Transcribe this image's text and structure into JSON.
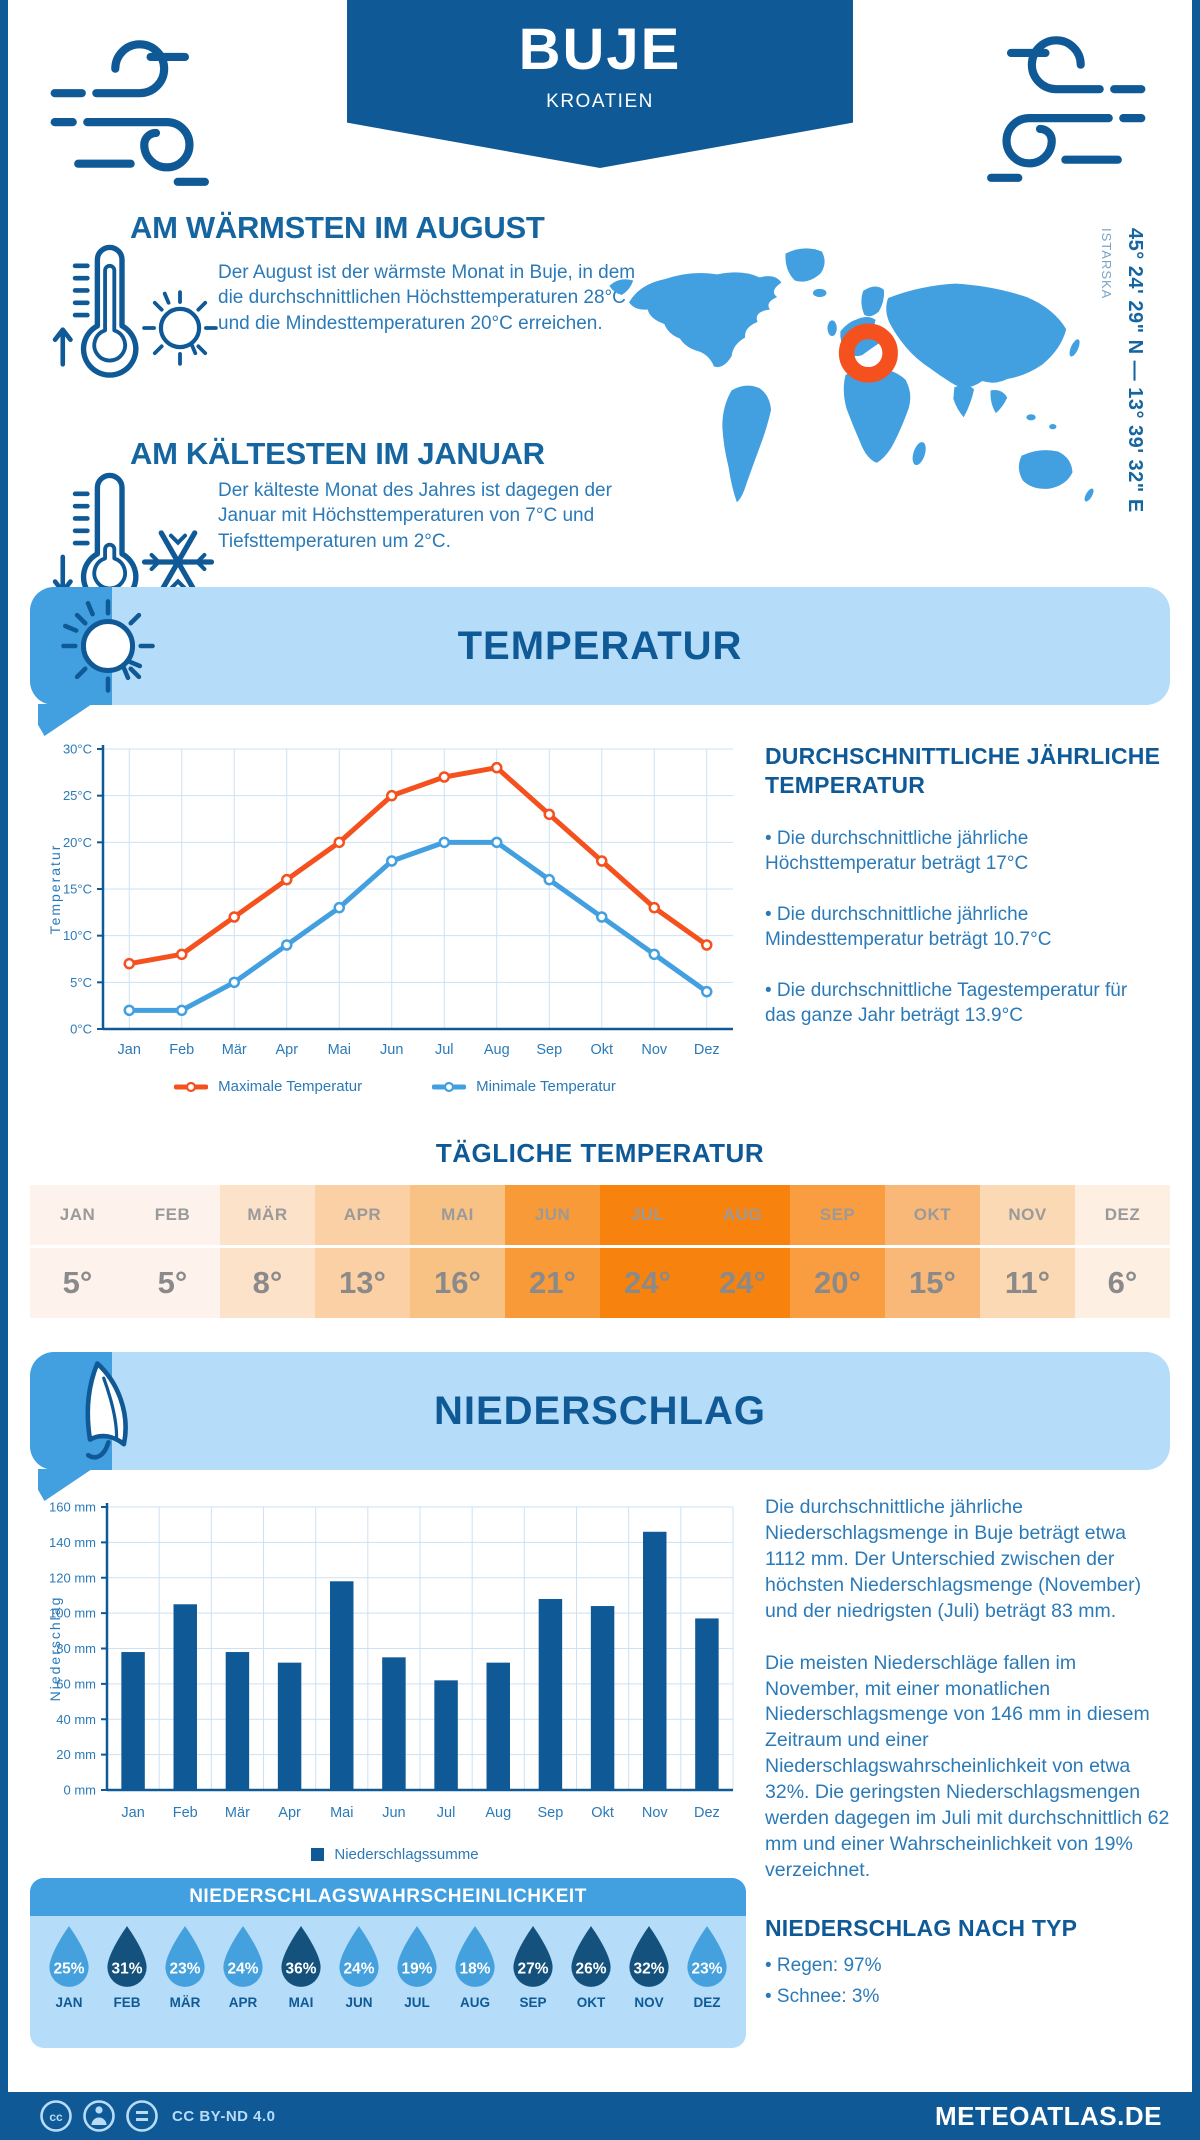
{
  "header": {
    "title": "BUJE",
    "subtitle": "KROATIEN"
  },
  "intro": {
    "warm": {
      "title": "AM WÄRMSTEN IM AUGUST",
      "text": "Der August ist der wärmste Monat in Buje, in dem die durchschnittlichen Höchsttemperaturen 28°C und die Mindesttemperaturen 20°C erreichen."
    },
    "cold": {
      "title": "AM KÄLTESTEN IM JANUAR",
      "text": "Der kälteste Monat des Jahres ist dagegen der Januar mit Höchsttemperaturen von 7°C und Tiefsttemperaturen um 2°C."
    },
    "map": {
      "coordinates": "45° 24' 29\" N — 13° 39' 32\" E",
      "region": "ISTARSKA",
      "marker_color": "#f4511e",
      "land_color": "#42a0e0"
    }
  },
  "temperature": {
    "banner_title": "TEMPERATUR",
    "summary": {
      "title": "DURCHSCHNITTLICHE JÄHRLICHE TEMPERATUR",
      "bullets": [
        "• Die durchschnittliche jährliche Höchsttemperatur beträgt 17°C",
        "• Die durchschnittliche jährliche Mindesttemperatur beträgt 10.7°C",
        "• Die durchschnittliche Tagestemperatur für das ganze Jahr beträgt 13.9°C"
      ]
    },
    "daily": {
      "title": "TÄGLICHE TEMPERATUR",
      "months": [
        "JAN",
        "FEB",
        "MÄR",
        "APR",
        "MAI",
        "JUN",
        "JUL",
        "AUG",
        "SEP",
        "OKT",
        "NOV",
        "DEZ"
      ],
      "values": [
        "5°",
        "5°",
        "8°",
        "13°",
        "16°",
        "21°",
        "24°",
        "24°",
        "20°",
        "15°",
        "11°",
        "6°"
      ],
      "cell_colors": [
        "#fdf3ec",
        "#fdf3ec",
        "#fbe2c9",
        "#fad0a4",
        "#f9c285",
        "#f99a38",
        "#f8820e",
        "#f8820e",
        "#f99d40",
        "#fab878",
        "#fbd9b4",
        "#fdf0e3"
      ]
    }
  },
  "precipitation": {
    "banner_title": "NIEDERSCHLAG",
    "paragraphs": [
      "Die durchschnittliche jährliche Niederschlagsmenge in Buje beträgt etwa 1112 mm. Der Unterschied zwischen der höchsten Niederschlagsmenge (November) und der niedrigsten (Juli) beträgt 83 mm.",
      "Die meisten Niederschläge fallen im November, mit einer monatlichen Niederschlagsmenge von 146 mm in diesem Zeitraum und einer Niederschlagswahrscheinlichkeit von etwa 32%. Die geringsten Niederschlagsmengen werden dagegen im Juli mit durchschnittlich 62 mm und einer Wahrscheinlichkeit von 19% verzeichnet."
    ],
    "by_type": {
      "title": "NIEDERSCHLAG NACH TYP",
      "bullets": [
        "• Regen: 97%",
        "• Schnee: 3%"
      ]
    },
    "probability": {
      "title": "NIEDERSCHLAGSWAHRSCHEINLICHKEIT",
      "months": [
        "JAN",
        "FEB",
        "MÄR",
        "APR",
        "MAI",
        "JUN",
        "JUL",
        "AUG",
        "SEP",
        "OKT",
        "NOV",
        "DEZ"
      ],
      "values": [
        "25%",
        "31%",
        "23%",
        "24%",
        "36%",
        "24%",
        "19%",
        "18%",
        "27%",
        "26%",
        "32%",
        "23%"
      ],
      "dark": [
        false,
        true,
        false,
        false,
        true,
        false,
        false,
        false,
        true,
        true,
        true,
        false
      ],
      "drop_color": "#44a1dd",
      "dark_color": "#14527d"
    }
  },
  "footer": {
    "license": "CC BY-ND 4.0",
    "site": "METEOATLAS.DE"
  },
  "colors": {
    "primary": "#0f5a96",
    "accent": "#42a0e0",
    "light_panel": "#b5dcf8",
    "orange": "#f4511e"
  },
  "chart_data": [
    {
      "type": "line",
      "title": "Monatliche Temperatur",
      "categories": [
        "Jan",
        "Feb",
        "Mär",
        "Apr",
        "Mai",
        "Jun",
        "Jul",
        "Aug",
        "Sep",
        "Okt",
        "Nov",
        "Dez"
      ],
      "series": [
        {
          "name": "Maximale Temperatur",
          "color": "#f4511e",
          "values": [
            7,
            8,
            12,
            16,
            20,
            25,
            27,
            28,
            23,
            18,
            13,
            9
          ]
        },
        {
          "name": "Minimale Temperatur",
          "color": "#42a0e0",
          "values": [
            2,
            2,
            5,
            9,
            13,
            18,
            20,
            20,
            16,
            12,
            8,
            4
          ]
        }
      ],
      "xlabel": "",
      "ylabel": "Temperatur",
      "ylim": [
        0,
        30
      ],
      "ytick_step": 5,
      "unit": "°C",
      "grid": true,
      "legend_position": "bottom"
    },
    {
      "type": "bar",
      "title": "Monatliche Niederschlagssumme",
      "categories": [
        "Jan",
        "Feb",
        "Mär",
        "Apr",
        "Mai",
        "Jun",
        "Jul",
        "Aug",
        "Sep",
        "Okt",
        "Nov",
        "Dez"
      ],
      "series": [
        {
          "name": "Niederschlagssumme",
          "color": "#0f5a96",
          "values": [
            78,
            105,
            78,
            72,
            118,
            75,
            62,
            72,
            108,
            104,
            146,
            97
          ]
        }
      ],
      "xlabel": "",
      "ylabel": "Niederschlag",
      "ylim": [
        0,
        160
      ],
      "ytick_step": 20,
      "unit": "mm",
      "grid": true,
      "legend_position": "bottom"
    }
  ]
}
